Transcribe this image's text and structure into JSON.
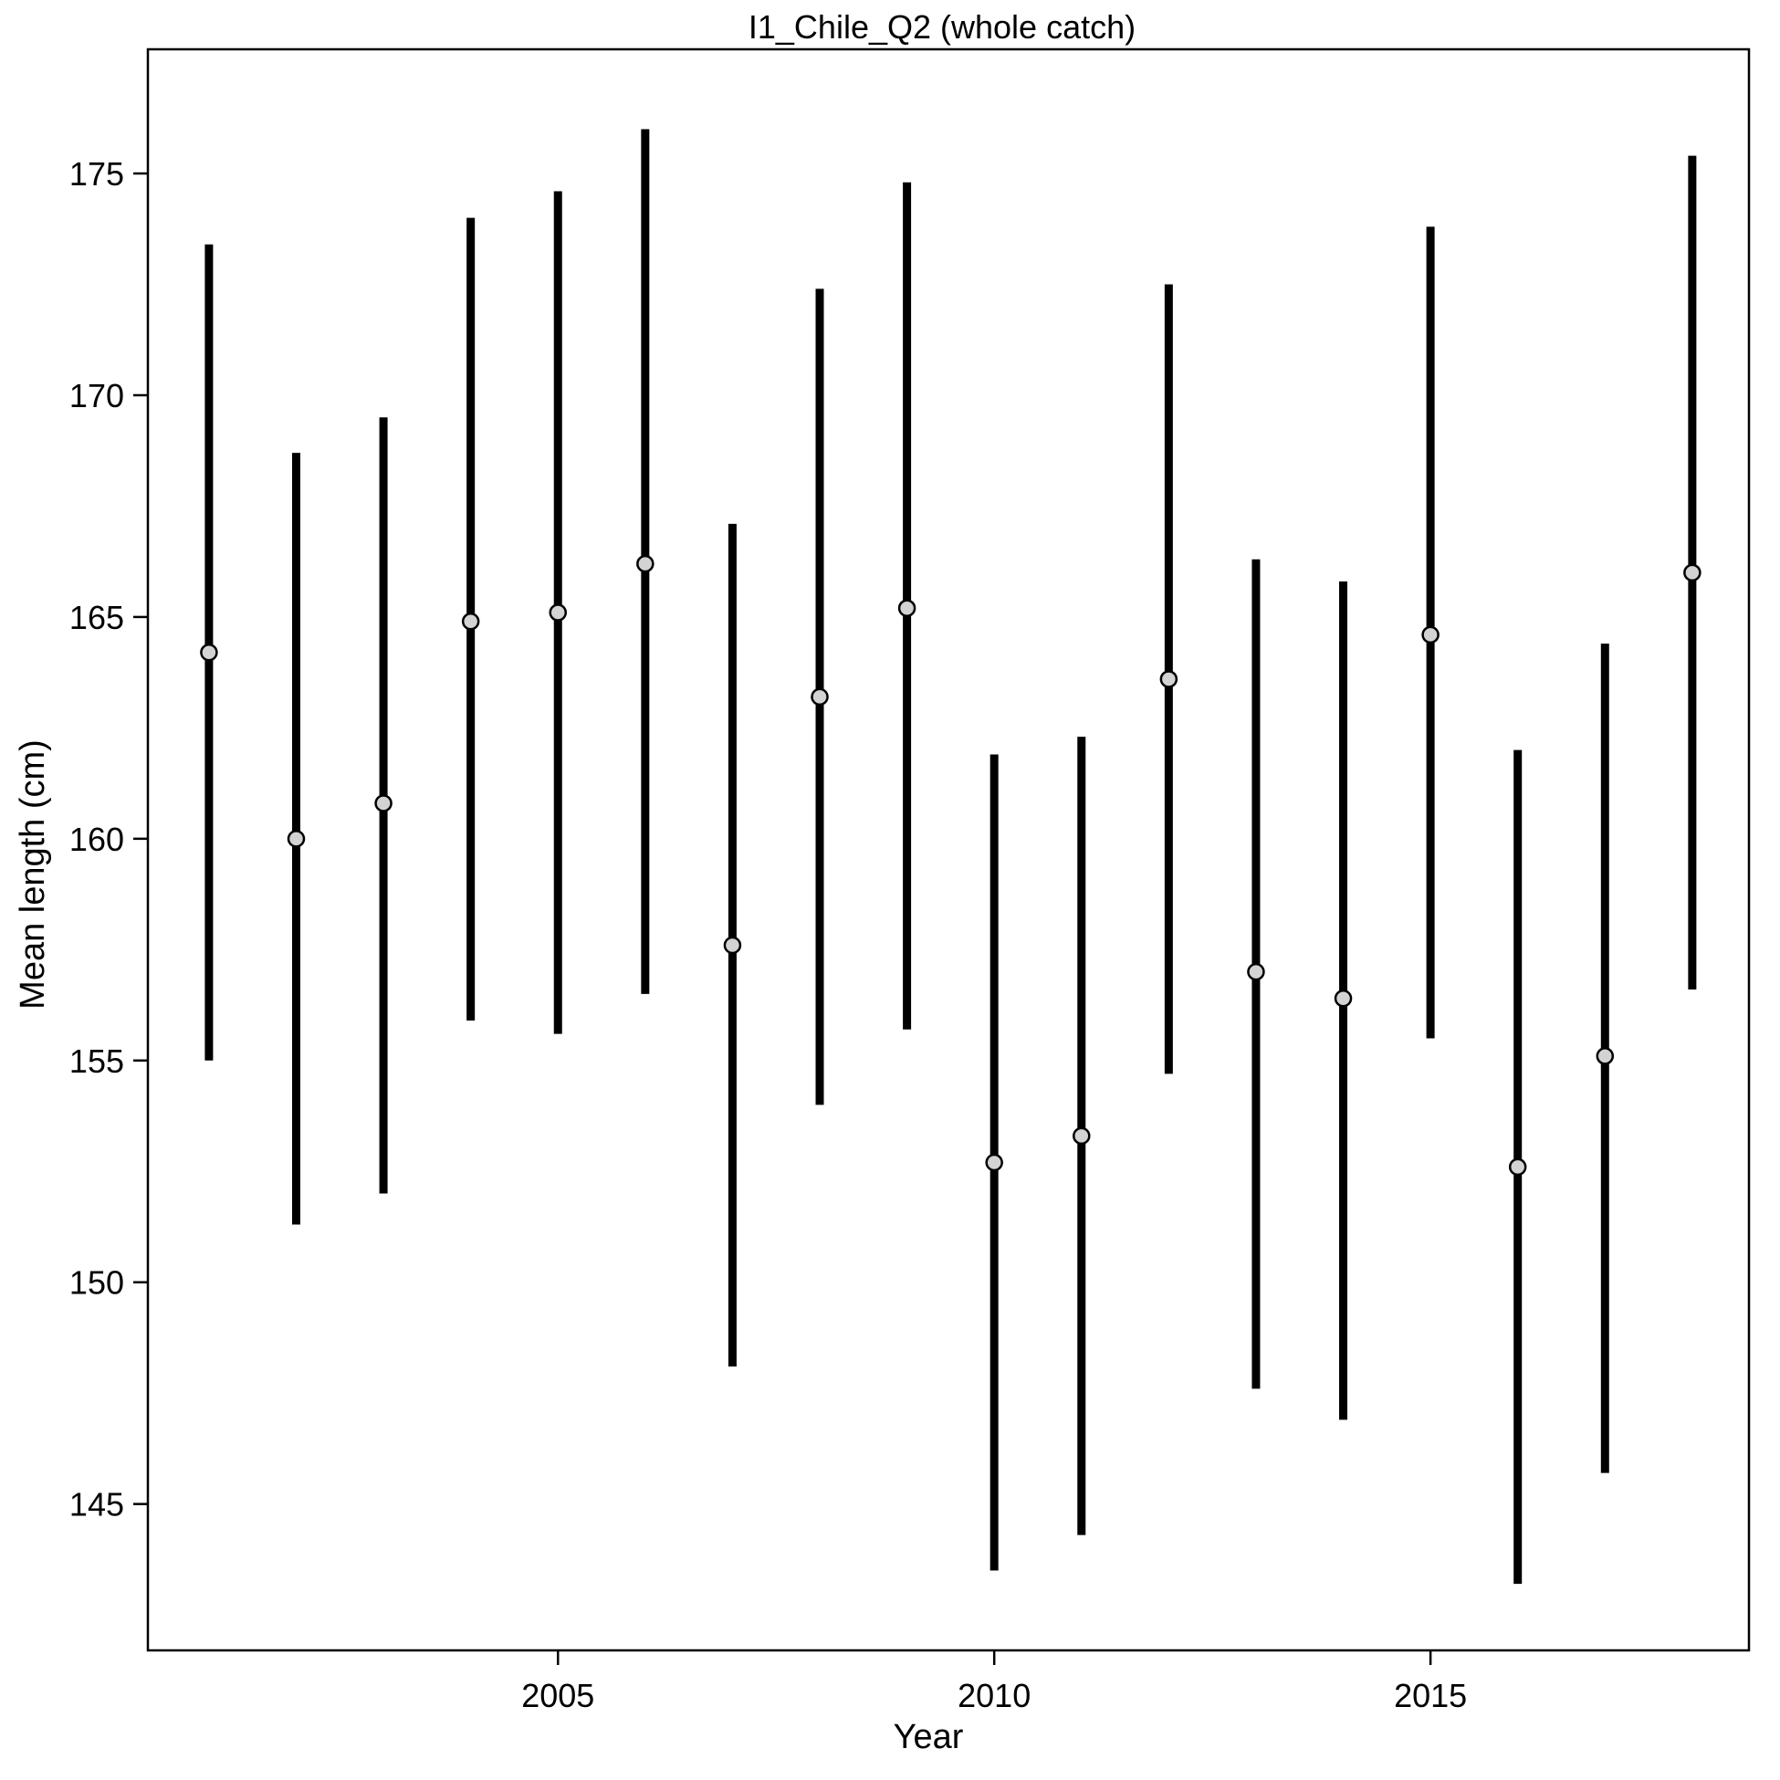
{
  "chart_data": {
    "type": "scatter",
    "title": "I1_Chile_Q2 (whole catch)",
    "xlabel": "Year",
    "ylabel": "Mean length (cm)",
    "xlim": [
      2000.3,
      2018.65
    ],
    "ylim": [
      141.7,
      177.8
    ],
    "xticks": [
      2005,
      2010,
      2015
    ],
    "yticks": [
      145,
      150,
      155,
      160,
      165,
      170,
      175
    ],
    "grid": false,
    "legend": "none",
    "colors": {
      "bar": "#000000",
      "point_fill": "#d3d3d3",
      "point_stroke": "#000000",
      "frame": "#000000"
    },
    "x": [
      2001,
      2002,
      2003,
      2004,
      2005,
      2006,
      2007,
      2008,
      2009,
      2010,
      2011,
      2012,
      2013,
      2014,
      2015,
      2016,
      2017,
      2018
    ],
    "series": [
      {
        "mean": [
          164.2,
          160.0,
          160.8,
          164.9,
          165.1,
          166.2,
          157.6,
          163.2,
          165.2,
          152.7,
          153.3,
          163.6,
          157.0,
          156.4,
          164.6,
          152.6,
          155.1,
          166.0
        ],
        "lower": [
          155.0,
          151.3,
          152.0,
          155.9,
          155.6,
          156.5,
          148.1,
          154.0,
          155.7,
          143.5,
          144.3,
          154.7,
          147.6,
          146.9,
          155.5,
          143.2,
          145.7,
          156.6
        ],
        "upper": [
          173.4,
          168.7,
          169.5,
          174.0,
          174.6,
          176.0,
          167.1,
          172.4,
          174.8,
          161.9,
          162.3,
          172.5,
          166.3,
          165.8,
          173.8,
          162.0,
          164.4,
          175.4
        ]
      }
    ]
  }
}
